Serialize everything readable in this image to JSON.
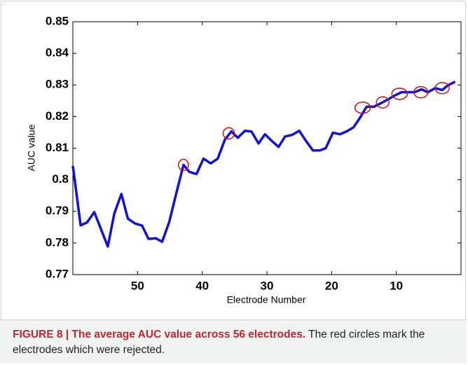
{
  "chart_data": {
    "type": "line",
    "x_label": "Electrode Number",
    "y_label": "AUC value",
    "xlim": [
      60,
      0
    ],
    "ylim": [
      0.77,
      0.85
    ],
    "xticks": [
      50,
      40,
      30,
      20,
      10
    ],
    "yticks": [
      0.77,
      0.78,
      0.79,
      0.8,
      0.81,
      0.82,
      0.83,
      0.84,
      0.85
    ],
    "series": [
      {
        "color": "#1010e0",
        "x": [
          60.0,
          58.8,
          57.8,
          56.7,
          54.6,
          53.6,
          52.5,
          51.5,
          50.4,
          49.3,
          48.3,
          47.2,
          46.2,
          45.1,
          44.0,
          42.9,
          42.0,
          40.9,
          39.8,
          38.7,
          37.6,
          36.5,
          35.5,
          34.5,
          33.4,
          32.4,
          31.3,
          30.3,
          29.2,
          28.2,
          27.2,
          26.1,
          25.0,
          24.0,
          22.9,
          21.8,
          20.9,
          19.8,
          18.7,
          17.7,
          16.6,
          15.5,
          14.6,
          13.5,
          12.4,
          11.4,
          10.3,
          9.2,
          8.3,
          7.2,
          6.1,
          5.1,
          4.0,
          2.9,
          2.0,
          0.9
        ],
        "values": [
          0.8044,
          0.7856,
          0.7865,
          0.7898,
          0.7789,
          0.7893,
          0.7955,
          0.7877,
          0.7862,
          0.7855,
          0.7813,
          0.7815,
          0.7804,
          0.7867,
          0.7958,
          0.8047,
          0.8025,
          0.8018,
          0.8067,
          0.8052,
          0.8067,
          0.8127,
          0.8153,
          0.8133,
          0.8155,
          0.8153,
          0.8115,
          0.8144,
          0.8122,
          0.8104,
          0.8137,
          0.8142,
          0.8155,
          0.8124,
          0.8093,
          0.8093,
          0.81,
          0.8149,
          0.8144,
          0.8153,
          0.8166,
          0.82,
          0.8231,
          0.8231,
          0.8242,
          0.8253,
          0.8266,
          0.8277,
          0.8277,
          0.8277,
          0.8286,
          0.8277,
          0.829,
          0.8284,
          0.8299,
          0.831
        ]
      }
    ],
    "highlight": {
      "color": "#d01010",
      "x": [
        42.9,
        35.9,
        15.2,
        12.1,
        9.5,
        6.2,
        2.9
      ],
      "values": [
        0.8047,
        0.8147,
        0.8228,
        0.8245,
        0.8272,
        0.8277,
        0.829
      ]
    }
  },
  "caption": {
    "label": "FIGURE 8 | The average AUC value across 56 electrodes.",
    "text": "The red circles mark the electrodes which were rejected."
  }
}
